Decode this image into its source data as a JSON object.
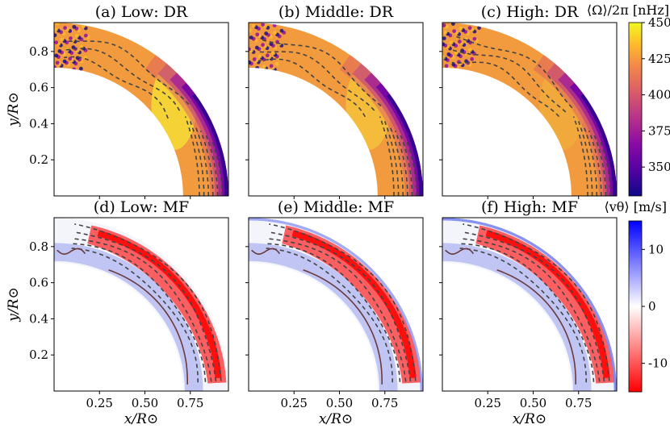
{
  "chart_data": {
    "type": "heatmap",
    "layout": "2x3 panel grid of meridional quarter-disk maps with two colorbars",
    "panels": [
      {
        "id": "a",
        "title": "(a) Low: DR",
        "row": 0,
        "col": 0,
        "field": "omega"
      },
      {
        "id": "b",
        "title": "(b) Middle: DR",
        "row": 0,
        "col": 1,
        "field": "omega"
      },
      {
        "id": "c",
        "title": "(c) High: DR",
        "row": 0,
        "col": 2,
        "field": "omega"
      },
      {
        "id": "d",
        "title": "(d) Low: MF",
        "row": 1,
        "col": 0,
        "field": "vtheta"
      },
      {
        "id": "e",
        "title": "(e) Middle: MF",
        "row": 1,
        "col": 1,
        "field": "vtheta"
      },
      {
        "id": "f",
        "title": "(f) High: MF",
        "row": 1,
        "col": 2,
        "field": "vtheta"
      }
    ],
    "x_axis": {
      "label": "x/R⊙",
      "range": [
        0.0,
        0.96
      ],
      "ticks": [
        0.25,
        0.5,
        0.75
      ],
      "tick_labels": [
        "0.25",
        "0.50",
        "0.75"
      ]
    },
    "y_axis": {
      "label": "y/R⊙",
      "range": [
        0.0,
        0.96
      ],
      "ticks": [
        0.2,
        0.4,
        0.6,
        0.8
      ],
      "tick_labels": [
        "0.2",
        "0.4",
        "0.6",
        "0.8"
      ]
    },
    "domain": {
      "r_inner": 0.71,
      "r_outer": 0.96
    },
    "colorbars": [
      {
        "field": "omega",
        "label": "⟨Ω⟩/2π [nHz]",
        "vmin": 330,
        "vmax": 450,
        "ticks": [
          350,
          375,
          400,
          425,
          450
        ],
        "colormap": "plasma"
      },
      {
        "field": "vtheta",
        "label": "⟨vθ⟩ [m/s]",
        "vmin": -15,
        "vmax": 15,
        "ticks": [
          10,
          0,
          -10
        ],
        "colormap": "bwr (blue positive, red negative)"
      }
    ],
    "contours": "dashed = negative / equal-rotation levels, solid = positive meridional flow levels"
  }
}
